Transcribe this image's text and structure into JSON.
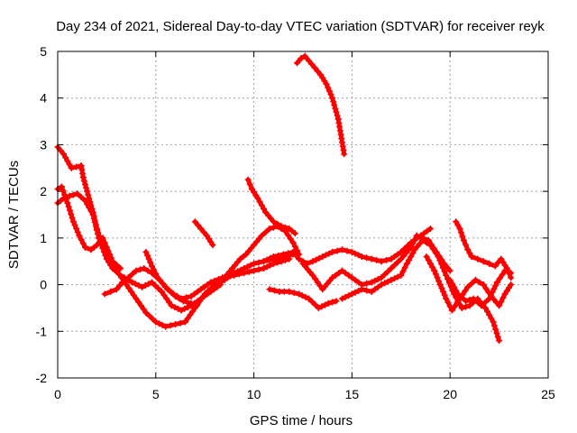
{
  "chart_data": {
    "type": "scatter",
    "title": "Day 234 of 2021, Sidereal Day-to-day VTEC variation (SDTVAR) for receiver reyk",
    "xlabel": "GPS time / hours",
    "ylabel": "SDTVAR / TECUs",
    "xlim": [
      0,
      25
    ],
    "ylim": [
      -2,
      5
    ],
    "xticks": [
      "0",
      "5",
      "10",
      "15",
      "20",
      "25"
    ],
    "yticks": [
      "-2",
      "-1",
      "0",
      "1",
      "2",
      "3",
      "4",
      "5"
    ],
    "grid": true,
    "marker": "plus",
    "color": "#ff0000",
    "series": [
      {
        "name": "trace-1",
        "x": [
          0.0,
          0.3,
          0.7,
          1.2,
          1.3,
          1.5,
          1.8,
          2.0,
          2.3,
          2.6,
          3.0,
          3.5,
          4.0,
          4.5,
          5.0,
          5.5,
          6.0,
          6.5,
          7.0,
          7.5,
          8.0,
          8.5,
          9.0,
          9.5,
          10.0,
          10.5,
          11.0,
          11.5,
          12.0
        ],
        "y": [
          2.95,
          2.8,
          2.5,
          2.55,
          2.3,
          2.0,
          1.55,
          1.2,
          0.8,
          0.55,
          0.3,
          0.0,
          -0.3,
          -0.6,
          -0.8,
          -0.9,
          -0.85,
          -0.8,
          -0.5,
          -0.2,
          0.0,
          0.1,
          0.25,
          0.35,
          0.45,
          0.5,
          0.55,
          0.6,
          0.65
        ]
      },
      {
        "name": "trace-2",
        "x": [
          0.0,
          0.2,
          0.5,
          0.8,
          1.1,
          1.4,
          1.7,
          2.0,
          2.3,
          2.5,
          2.8,
          3.2
        ],
        "y": [
          2.05,
          2.1,
          1.75,
          1.35,
          1.05,
          0.8,
          0.75,
          0.85,
          1.0,
          0.8,
          0.5,
          0.35
        ]
      },
      {
        "name": "trace-3",
        "x": [
          0.0,
          0.3,
          0.6,
          1.0,
          1.4,
          1.8,
          2.1,
          2.5,
          2.8,
          3.2,
          3.8,
          4.3,
          4.8,
          5.3,
          5.8,
          6.3,
          6.8,
          7.3,
          7.8,
          8.3
        ],
        "y": [
          1.75,
          1.85,
          1.9,
          1.95,
          1.8,
          1.5,
          1.0,
          0.55,
          0.35,
          0.2,
          0.05,
          -0.05,
          0.05,
          -0.15,
          -0.45,
          -0.55,
          -0.45,
          -0.3,
          -0.15,
          0.0
        ]
      },
      {
        "name": "trace-4",
        "x": [
          2.4,
          2.7,
          3.0,
          3.3,
          3.6,
          4.0,
          4.4,
          4.8,
          5.2,
          5.6,
          6.0,
          6.4,
          6.8,
          7.1
        ],
        "y": [
          -0.2,
          -0.15,
          -0.1,
          0.05,
          0.15,
          0.3,
          0.35,
          0.25,
          0.1,
          -0.1,
          -0.25,
          -0.35,
          -0.4,
          -0.45
        ]
      },
      {
        "name": "trace-5",
        "x": [
          4.5,
          4.8,
          5.1,
          5.5,
          5.9,
          6.3,
          6.8,
          7.3,
          7.8,
          8.4,
          9.0,
          9.5,
          10.0,
          10.5,
          11.0,
          11.4,
          11.8
        ],
        "y": [
          0.7,
          0.4,
          0.15,
          -0.05,
          -0.2,
          -0.3,
          -0.25,
          -0.1,
          0.05,
          0.15,
          0.2,
          0.25,
          0.3,
          0.35,
          0.45,
          0.5,
          0.55
        ]
      },
      {
        "name": "trace-6",
        "x": [
          7.0,
          7.3,
          7.6,
          7.9
        ],
        "y": [
          1.35,
          1.2,
          1.05,
          0.85
        ]
      },
      {
        "name": "trace-7",
        "x": [
          9.7,
          9.9,
          10.2,
          10.6,
          11.0,
          11.4,
          11.8,
          12.1
        ],
        "y": [
          2.25,
          2.05,
          1.85,
          1.55,
          1.35,
          1.25,
          1.2,
          1.1
        ]
      },
      {
        "name": "trace-8",
        "x": [
          8.5,
          8.9,
          9.3,
          9.6,
          10.0,
          10.4,
          10.8,
          11.2,
          11.6,
          12.0,
          12.3
        ],
        "y": [
          0.15,
          0.35,
          0.55,
          0.65,
          0.85,
          1.05,
          1.2,
          1.25,
          1.15,
          0.9,
          0.65
        ]
      },
      {
        "name": "trace-9",
        "x": [
          12.2,
          12.4,
          12.6,
          12.8,
          13.1,
          13.4,
          13.7,
          14.0,
          14.3,
          14.6
        ],
        "y": [
          4.75,
          4.85,
          4.9,
          4.8,
          4.65,
          4.5,
          4.3,
          4.0,
          3.55,
          2.8
        ]
      },
      {
        "name": "trace-10",
        "x": [
          10.8,
          11.3,
          11.8,
          12.3,
          12.8,
          13.3,
          13.8,
          14.2
        ],
        "y": [
          -0.1,
          -0.15,
          -0.15,
          -0.2,
          -0.3,
          -0.5,
          -0.4,
          -0.35
        ]
      },
      {
        "name": "trace-11",
        "x": [
          10.5,
          11.0,
          11.5,
          12.0,
          12.3,
          12.7,
          13.0,
          13.5,
          14.0,
          14.5,
          15.0,
          15.5,
          16.0,
          16.5,
          17.0,
          17.5,
          18.0,
          18.5,
          19.0
        ],
        "y": [
          0.5,
          0.6,
          0.65,
          0.7,
          0.55,
          0.45,
          0.5,
          0.6,
          0.7,
          0.75,
          0.7,
          0.6,
          0.55,
          0.5,
          0.55,
          0.7,
          0.9,
          1.05,
          1.2
        ]
      },
      {
        "name": "trace-12",
        "x": [
          12.5,
          13.0,
          13.5,
          14.0,
          14.5,
          15.0,
          15.5,
          16.0,
          16.5,
          17.0,
          17.5,
          18.0,
          18.3,
          18.6,
          18.9,
          19.3,
          19.7,
          20.0
        ],
        "y": [
          0.45,
          0.2,
          -0.1,
          0.15,
          0.3,
          0.15,
          0.0,
          0.05,
          0.15,
          0.35,
          0.55,
          0.8,
          1.05,
          1.0,
          0.95,
          0.7,
          0.45,
          0.3
        ]
      },
      {
        "name": "trace-13",
        "x": [
          14.5,
          15.0,
          15.5,
          16.0,
          16.5,
          17.0,
          17.5,
          17.8,
          18.2,
          18.6,
          19.0,
          19.4,
          19.8,
          20.2,
          20.6,
          21.0,
          21.4,
          21.8,
          22.2,
          22.5
        ],
        "y": [
          -0.3,
          -0.2,
          -0.1,
          -0.15,
          0.0,
          0.1,
          0.2,
          0.45,
          0.75,
          0.95,
          0.85,
          0.6,
          0.2,
          -0.2,
          -0.5,
          -0.45,
          -0.3,
          -0.5,
          -0.8,
          -1.2
        ]
      },
      {
        "name": "trace-14",
        "x": [
          18.8,
          19.2,
          19.5,
          19.8,
          20.1,
          20.5,
          20.9,
          21.3,
          21.7,
          22.1,
          22.5,
          22.8,
          23.1
        ],
        "y": [
          0.6,
          0.3,
          0.0,
          -0.3,
          -0.55,
          -0.3,
          -0.05,
          0.1,
          0.0,
          -0.25,
          -0.45,
          -0.2,
          0.0
        ]
      },
      {
        "name": "trace-15",
        "x": [
          20.3,
          20.5,
          20.7,
          20.9,
          21.1,
          21.4,
          21.7,
          22.0,
          22.3,
          22.6,
          22.9,
          23.1
        ],
        "y": [
          1.35,
          1.2,
          0.95,
          0.75,
          0.6,
          0.55,
          0.5,
          0.45,
          0.4,
          0.55,
          0.35,
          0.15
        ]
      },
      {
        "name": "trace-16",
        "x": [
          20.0,
          20.4,
          20.8,
          21.2,
          21.6,
          22.0,
          22.4,
          22.8,
          23.1
        ],
        "y": [
          0.1,
          -0.2,
          -0.35,
          -0.3,
          -0.45,
          -0.3,
          0.05,
          0.3,
          0.25
        ]
      }
    ]
  }
}
